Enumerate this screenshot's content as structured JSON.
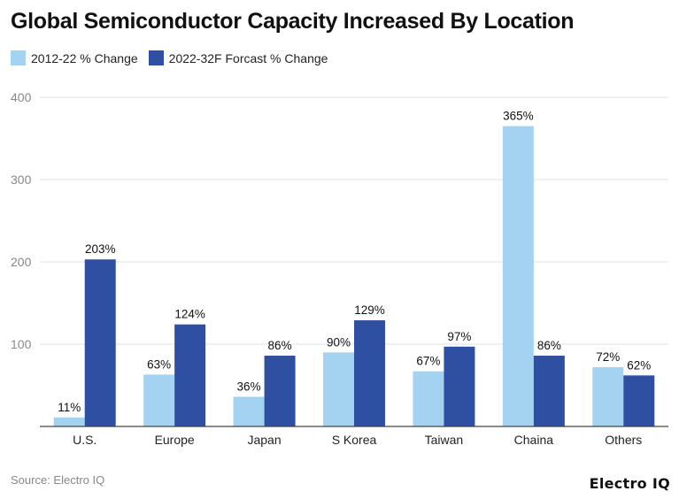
{
  "chart_data": {
    "type": "bar",
    "title": "Global Semiconductor Capacity Increased By Location",
    "categories": [
      "U.S.",
      "Europe",
      "Japan",
      "S Korea",
      "Taiwan",
      "Chaina",
      "Others"
    ],
    "series": [
      {
        "name": "2012-22 % Change",
        "color": "#a3d3f0",
        "values": [
          11,
          63,
          36,
          90,
          67,
          365,
          72
        ],
        "labels": [
          "11%",
          "63%",
          "36%",
          "90%",
          "67%",
          "365%",
          "72%"
        ]
      },
      {
        "name": "2022-32F Forcast % Change",
        "color": "#2f4fa3",
        "values": [
          203,
          124,
          86,
          129,
          97,
          86,
          62
        ],
        "labels": [
          "203%",
          "124%",
          "86%",
          "129%",
          "97%",
          "86%",
          "62%"
        ]
      }
    ],
    "ylim": [
      0,
      400
    ],
    "yticks": [
      "100",
      "200",
      "300",
      "400"
    ],
    "grid": true,
    "legend": "top-left",
    "xlabel": "",
    "ylabel": ""
  },
  "footer": {
    "source": "Source: Electro IQ",
    "logo": "Electro IQ"
  }
}
